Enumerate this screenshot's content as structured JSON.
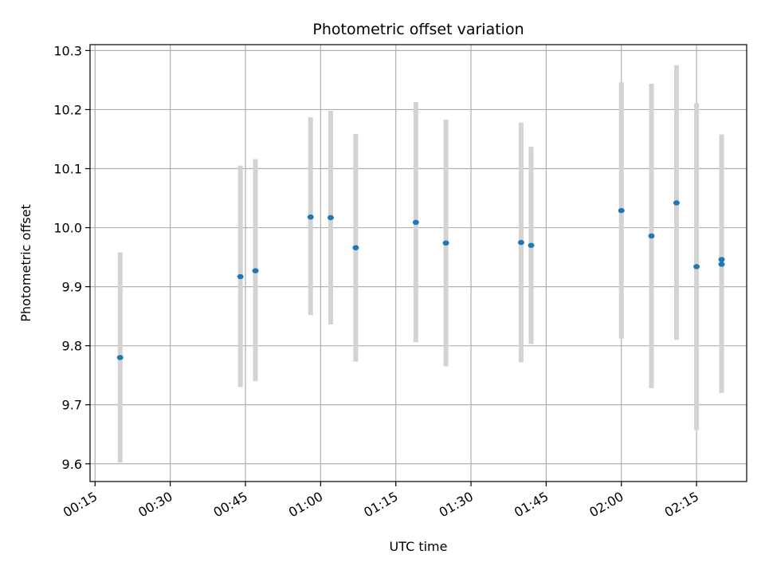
{
  "chart_data": {
    "type": "scatter",
    "title": "Photometric offset variation",
    "xlabel": "UTC time",
    "ylabel": "Photometric offset",
    "x_ticks": [
      "00:15",
      "00:30",
      "00:45",
      "01:00",
      "01:15",
      "01:30",
      "01:45",
      "02:00",
      "02:15"
    ],
    "y_ticks": [
      "9.6",
      "9.7",
      "9.8",
      "9.9",
      "10.0",
      "10.1",
      "10.2",
      "10.3"
    ],
    "xlim": [
      "00:14",
      "02:25"
    ],
    "ylim": [
      9.57,
      10.31
    ],
    "grid": true,
    "colors": {
      "point": "#1f77b4",
      "errorbar": "#d3d3d3",
      "grid": "#b0b0b0"
    },
    "points": [
      {
        "x": "00:20",
        "y": 9.78,
        "y_low": 9.602,
        "y_high": 9.958
      },
      {
        "x": "00:44",
        "y": 9.917,
        "y_low": 9.73,
        "y_high": 10.105
      },
      {
        "x": "00:47",
        "y": 9.927,
        "y_low": 9.74,
        "y_high": 10.116
      },
      {
        "x": "00:58",
        "y": 10.018,
        "y_low": 9.852,
        "y_high": 10.187
      },
      {
        "x": "01:02",
        "y": 10.017,
        "y_low": 9.836,
        "y_high": 10.198
      },
      {
        "x": "01:07",
        "y": 9.966,
        "y_low": 9.773,
        "y_high": 10.159
      },
      {
        "x": "01:19",
        "y": 10.009,
        "y_low": 9.806,
        "y_high": 10.213
      },
      {
        "x": "01:25",
        "y": 9.974,
        "y_low": 9.765,
        "y_high": 10.183
      },
      {
        "x": "01:40",
        "y": 9.975,
        "y_low": 9.772,
        "y_high": 10.178
      },
      {
        "x": "01:42",
        "y": 9.97,
        "y_low": 9.803,
        "y_high": 10.137
      },
      {
        "x": "02:00",
        "y": 10.029,
        "y_low": 9.812,
        "y_high": 10.246
      },
      {
        "x": "02:06",
        "y": 9.986,
        "y_low": 9.728,
        "y_high": 10.244
      },
      {
        "x": "02:11",
        "y": 10.042,
        "y_low": 9.81,
        "y_high": 10.275
      },
      {
        "x": "02:15",
        "y": 9.934,
        "y_low": 9.657,
        "y_high": 10.211
      },
      {
        "x": "02:20",
        "y": 9.938,
        "y_low": 9.72,
        "y_high": 10.154
      },
      {
        "x": "02:20",
        "y": 9.946,
        "y_low": 9.733,
        "y_high": 10.158
      }
    ]
  }
}
